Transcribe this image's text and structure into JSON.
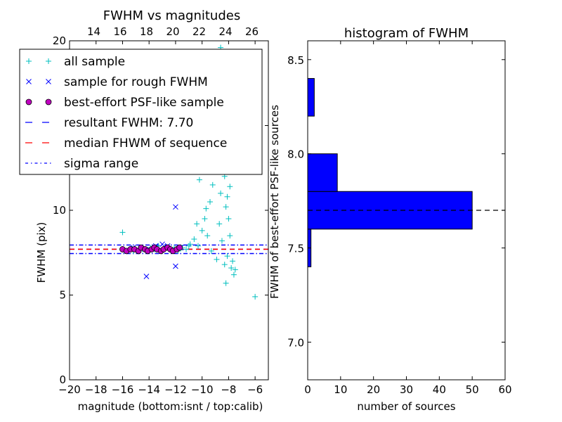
{
  "chart_data": [
    {
      "type": "scatter",
      "title": "FWHM vs magnitudes",
      "xlabel": "magnitude (bottom:isnt / top:calib)",
      "ylabel": "FWHM (pix)",
      "xlim": [
        -20,
        -5
      ],
      "ylim": [
        0,
        20
      ],
      "xticks": [
        -20,
        -18,
        -16,
        -14,
        -12,
        -10,
        -8,
        -6
      ],
      "xtick_labels": [
        "−20",
        "−18",
        "−16",
        "−14",
        "−12",
        "−10",
        "−8",
        "−6"
      ],
      "yticks": [
        0,
        5,
        10,
        15,
        20
      ],
      "ytick_labels": [
        "0",
        "5",
        "10",
        "15",
        "20"
      ],
      "top_xticks": [
        14,
        16,
        18,
        20,
        22,
        24,
        26
      ],
      "top_xtick_labels": [
        "14",
        "16",
        "18",
        "20",
        "22",
        "24",
        "26"
      ],
      "grid": false,
      "legend_position": "top-left",
      "legend": [
        {
          "label": "all sample",
          "marker": "+",
          "color": "#00bfbf"
        },
        {
          "label": "sample for rough FWHM",
          "marker": "x",
          "color": "#0000ff"
        },
        {
          "label": "best-effort PSF-like sample",
          "marker": "o",
          "color": "#bf00bf"
        },
        {
          "label": "resultant FWHM: 7.70",
          "line": "dashed",
          "color": "#0000ff"
        },
        {
          "label": "median FHWM of sequence",
          "line": "dashed",
          "color": "#ff0000"
        },
        {
          "label": "sigma range",
          "line": "dashdot",
          "color": "#0000ff"
        }
      ],
      "series": [
        {
          "name": "all sample",
          "marker": "+",
          "color": "#00bfbf",
          "points": [
            [
              -16.0,
              8.7
            ],
            [
              -15.8,
              7.6
            ],
            [
              -15.5,
              7.7
            ],
            [
              -15.2,
              7.6
            ],
            [
              -14.8,
              7.7
            ],
            [
              -14.5,
              7.7
            ],
            [
              -14.2,
              7.6
            ],
            [
              -13.9,
              7.8
            ],
            [
              -13.6,
              7.7
            ],
            [
              -13.3,
              7.9
            ],
            [
              -13.0,
              7.6
            ],
            [
              -12.7,
              7.8
            ],
            [
              -12.4,
              7.7
            ],
            [
              -12.1,
              7.8
            ],
            [
              -11.8,
              7.6
            ],
            [
              -11.5,
              7.8
            ],
            [
              -11.2,
              7.7
            ],
            [
              -10.9,
              8.0
            ],
            [
              -10.6,
              8.3
            ],
            [
              -10.3,
              7.9
            ],
            [
              -10.0,
              8.8
            ],
            [
              -9.8,
              9.5
            ],
            [
              -9.6,
              8.5
            ],
            [
              -9.4,
              10.5
            ],
            [
              -9.2,
              11.5
            ],
            [
              -9.0,
              12.5
            ],
            [
              -8.8,
              13.0
            ],
            [
              -8.7,
              9.2
            ],
            [
              -8.6,
              11.0
            ],
            [
              -8.5,
              8.2
            ],
            [
              -8.4,
              14.2
            ],
            [
              -8.3,
              12.0
            ],
            [
              -8.2,
              10.2
            ],
            [
              -8.1,
              7.3
            ],
            [
              -8.0,
              9.5
            ],
            [
              -7.9,
              8.5
            ],
            [
              -7.8,
              6.6
            ],
            [
              -7.7,
              7.0
            ],
            [
              -7.6,
              6.2
            ],
            [
              -7.5,
              6.5
            ],
            [
              -8.2,
              5.7
            ],
            [
              -6.0,
              4.9
            ],
            [
              -8.6,
              19.6
            ],
            [
              -9.2,
              17.0
            ],
            [
              -8.4,
              16.1
            ],
            [
              -9.5,
              13.5
            ],
            [
              -8.9,
              15.4
            ],
            [
              -10.2,
              11.8
            ],
            [
              -10.4,
              9.2
            ],
            [
              -11.0,
              7.9
            ],
            [
              -8.3,
              6.8
            ],
            [
              -8.9,
              7.1
            ],
            [
              -9.3,
              7.6
            ],
            [
              -9.7,
              10.1
            ],
            [
              -8.7,
              12.6
            ],
            [
              -8.1,
              10.8
            ],
            [
              -7.9,
              11.4
            ],
            [
              -8.5,
              13.6
            ],
            [
              -9.1,
              14.4
            ],
            [
              -8.8,
              15.0
            ]
          ]
        },
        {
          "name": "sample for rough FWHM",
          "marker": "x",
          "color": "#0000ff",
          "points": [
            [
              -14.2,
              6.1
            ],
            [
              -12.0,
              10.2
            ],
            [
              -12.0,
              6.7
            ],
            [
              -13.0,
              8.0
            ],
            [
              -12.6,
              7.9
            ],
            [
              -15.2,
              7.8
            ],
            [
              -14.0,
              7.7
            ],
            [
              -13.5,
              7.9
            ],
            [
              -11.6,
              7.8
            ]
          ]
        },
        {
          "name": "best-effort PSF-like sample",
          "marker": "o",
          "color": "#bf00bf",
          "points": [
            [
              -16.0,
              7.7
            ],
            [
              -15.7,
              7.6
            ],
            [
              -15.4,
              7.7
            ],
            [
              -15.1,
              7.7
            ],
            [
              -14.8,
              7.6
            ],
            [
              -14.6,
              7.8
            ],
            [
              -14.3,
              7.7
            ],
            [
              -14.1,
              7.6
            ],
            [
              -13.8,
              7.7
            ],
            [
              -13.6,
              7.8
            ],
            [
              -13.4,
              7.7
            ],
            [
              -13.1,
              7.6
            ],
            [
              -12.9,
              7.7
            ],
            [
              -12.6,
              7.8
            ],
            [
              -12.4,
              7.7
            ],
            [
              -12.2,
              7.6
            ],
            [
              -11.9,
              7.7
            ],
            [
              -11.7,
              7.8
            ]
          ]
        }
      ],
      "hlines": [
        {
          "name": "resultant FWHM: 7.70",
          "y": 7.7,
          "color": "#0000ff",
          "style": "dashed"
        },
        {
          "name": "median FHWM of sequence",
          "y": 7.7,
          "color": "#ff0000",
          "style": "dashed"
        },
        {
          "name": "sigma range",
          "y": 7.95,
          "color": "#0000ff",
          "style": "dashdot"
        },
        {
          "name": "sigma range",
          "y": 7.45,
          "color": "#0000ff",
          "style": "dashdot"
        }
      ]
    },
    {
      "type": "bar",
      "orientation": "horizontal",
      "title": "histogram of FWHM",
      "xlabel": "number of sources",
      "ylabel": "FWHM of best-effort PSF-like sources",
      "xlim": [
        0,
        60
      ],
      "ylim": [
        6.8,
        8.6
      ],
      "xticks": [
        0,
        10,
        20,
        30,
        40,
        50,
        60
      ],
      "xtick_labels": [
        "0",
        "10",
        "20",
        "30",
        "40",
        "50",
        "60"
      ],
      "yticks": [
        7.0,
        7.5,
        8.0,
        8.5
      ],
      "ytick_labels": [
        "7.0",
        "7.5",
        "8.0",
        "8.5"
      ],
      "bar_color": "#0000ff",
      "bins": [
        {
          "from": 7.4,
          "to": 7.6,
          "count": 1
        },
        {
          "from": 7.6,
          "to": 7.8,
          "count": 50
        },
        {
          "from": 7.8,
          "to": 8.0,
          "count": 9
        },
        {
          "from": 8.0,
          "to": 8.2,
          "count": 0
        },
        {
          "from": 8.2,
          "to": 8.4,
          "count": 2
        }
      ],
      "reference_line": {
        "y": 7.7,
        "style": "dashed",
        "color": "#000000"
      }
    }
  ]
}
